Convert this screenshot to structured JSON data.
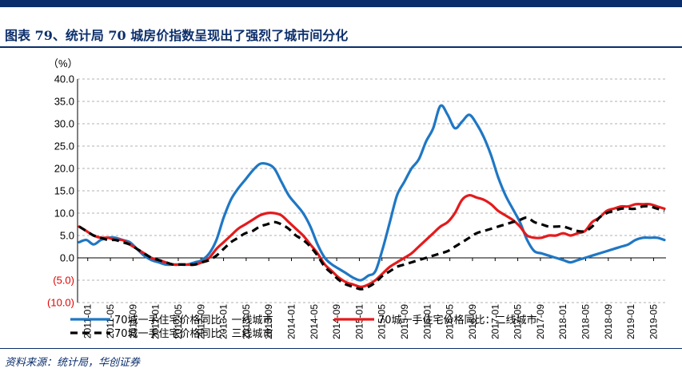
{
  "header": {
    "title": "图表 79、统计局 70 城房价指数呈现出了强烈了城市间分化"
  },
  "footer": {
    "source": "资料来源：统计局，华创证券"
  },
  "chart_data": {
    "type": "line",
    "unit_label": "（%）",
    "ylim": [
      -10,
      40
    ],
    "y_ticks": [
      {
        "value": 40,
        "label": "40.0"
      },
      {
        "value": 35,
        "label": "35.0"
      },
      {
        "value": 30,
        "label": "30.0"
      },
      {
        "value": 25,
        "label": "25.0"
      },
      {
        "value": 20,
        "label": "20.0"
      },
      {
        "value": 15,
        "label": "15.0"
      },
      {
        "value": 10,
        "label": "10.0"
      },
      {
        "value": 5,
        "label": "5.0"
      },
      {
        "value": 0,
        "label": "0.0"
      },
      {
        "value": -5,
        "label": "(5.0)"
      },
      {
        "value": -10,
        "label": "(10.0)"
      }
    ],
    "negative_tick_color": "#e00000",
    "grid": "horizontal-dashed",
    "legend_position": "bottom",
    "x_labels": [
      "2011-01",
      "2011-05",
      "2011-09",
      "2012-01",
      "2012-05",
      "2012-09",
      "2013-01",
      "2013-05",
      "2013-09",
      "2014-01",
      "2014-05",
      "2014-09",
      "2015-01",
      "2015-05",
      "2015-09",
      "2016-01",
      "2016-05",
      "2016-09",
      "2017-01",
      "2017-05",
      "2017-09",
      "2018-01",
      "2018-05",
      "2018-09",
      "2019-01",
      "2019-05"
    ],
    "series": [
      {
        "name": "70城一手住宅价格同比：一线城市",
        "color": "#1f77c4",
        "style": "solid",
        "values": [
          3.5,
          4,
          3,
          4,
          4.5,
          4.5,
          4,
          3.5,
          2,
          0.5,
          -0.5,
          -1,
          -1.5,
          -1.5,
          -1.5,
          -1.5,
          -1,
          -0.5,
          1,
          4,
          9,
          13,
          15.5,
          17.5,
          19.5,
          21,
          21,
          20,
          17,
          14,
          12,
          10,
          7,
          3,
          0,
          -1.5,
          -2.5,
          -3.5,
          -4.5,
          -5,
          -4,
          -3,
          2,
          8,
          14,
          17,
          20,
          22,
          26,
          29,
          34,
          32,
          29,
          30.5,
          32,
          30,
          27,
          23,
          18,
          14,
          11,
          8,
          4,
          1.5,
          1,
          0.5,
          0,
          -0.5,
          -1,
          -0.5,
          0,
          0.5,
          1,
          1.5,
          2,
          2.5,
          3,
          4,
          4.5,
          4.5,
          4.5,
          4
        ]
      },
      {
        "name": "70城一手住宅价格同比：二线城市",
        "color": "#e41a1c",
        "style": "solid",
        "values": [
          7,
          6,
          5,
          4.5,
          4.5,
          4,
          4,
          3,
          2,
          1,
          0,
          -0.5,
          -1,
          -1.5,
          -1.5,
          -1.5,
          -1.5,
          -1,
          0,
          2,
          3.5,
          5,
          6.5,
          7.5,
          8.5,
          9.5,
          10,
          10,
          9.5,
          8,
          6.5,
          5,
          3,
          1,
          -1.5,
          -3,
          -4.5,
          -5.5,
          -6,
          -6.5,
          -6,
          -5,
          -3.5,
          -2,
          -1,
          0,
          1,
          2.5,
          4,
          5.5,
          7,
          8,
          10,
          13,
          14,
          13.5,
          13,
          12,
          10.5,
          9.5,
          8.5,
          7,
          5,
          4.5,
          4.5,
          5,
          5,
          5.5,
          5,
          5.5,
          6,
          8,
          9,
          10.5,
          11,
          11.5,
          11.5,
          12,
          12,
          12,
          11.5,
          11
        ]
      },
      {
        "name": "70城一手住宅价格同比：三线城市",
        "color": "#000000",
        "style": "dashed",
        "values": [
          7,
          6,
          5,
          4.5,
          4,
          4,
          3.5,
          3,
          2,
          1,
          0,
          -0.5,
          -1,
          -1.5,
          -1.5,
          -1.5,
          -1.5,
          -1,
          -0.5,
          0.5,
          2,
          3.5,
          4.5,
          5.5,
          6,
          7,
          7.5,
          8,
          7.5,
          6.5,
          5,
          4,
          2.5,
          0.5,
          -2,
          -3.5,
          -5,
          -6,
          -6.5,
          -7,
          -6.5,
          -5.5,
          -4,
          -3,
          -2,
          -1.5,
          -1,
          -0.5,
          0,
          0.5,
          1,
          1.5,
          2.5,
          3.5,
          4.5,
          5.5,
          6,
          6.5,
          7,
          7.5,
          8,
          8.5,
          9,
          8,
          7.5,
          7,
          7,
          7,
          6.5,
          6,
          6,
          7,
          9,
          10,
          10.5,
          11,
          11,
          11,
          11.5,
          11.5,
          11,
          10.5
        ]
      }
    ]
  }
}
